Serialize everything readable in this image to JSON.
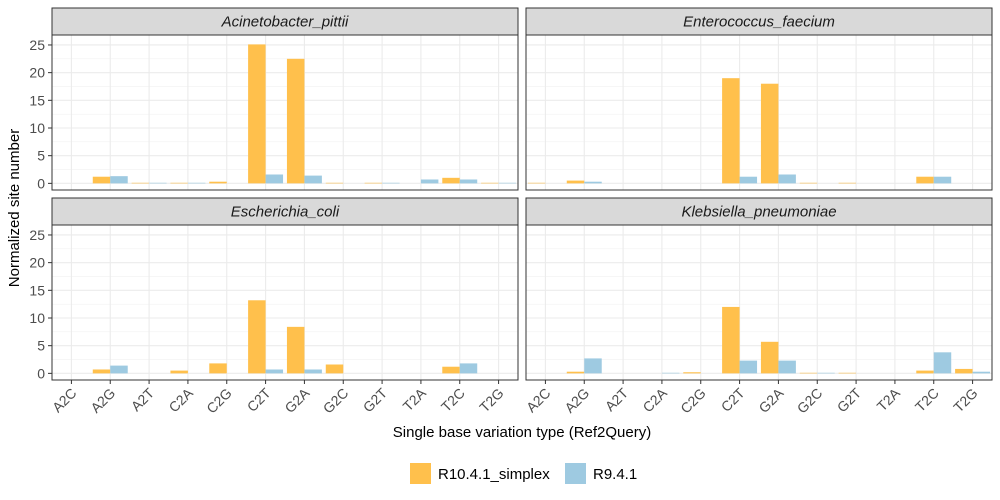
{
  "chart_data": {
    "type": "bar",
    "xlabel": "Single base variation type (Ref2Query)",
    "ylabel": "Normalized site number",
    "ylim": [
      -1.2,
      26.8
    ],
    "yticks": [
      0,
      5,
      10,
      15,
      20,
      25
    ],
    "categories": [
      "A2C",
      "A2G",
      "A2T",
      "C2A",
      "C2G",
      "C2T",
      "G2A",
      "G2C",
      "G2T",
      "T2A",
      "T2C",
      "T2G"
    ],
    "grid": true,
    "legend_position": "bottom",
    "legend": [
      {
        "name": "R10.4.1_simplex",
        "color": "#FFC04C"
      },
      {
        "name": "R9.4.1",
        "color": "#9ECAE1"
      }
    ],
    "panels": [
      {
        "title": "Acinetobacter_pittii",
        "series": [
          {
            "name": "R10.4.1_simplex",
            "values": [
              0,
              1.2,
              0.1,
              0.1,
              0.3,
              25.1,
              22.5,
              0.1,
              0.1,
              0,
              1.0,
              0.1
            ]
          },
          {
            "name": "R9.4.1",
            "values": [
              0,
              1.3,
              0.1,
              0.1,
              0,
              1.6,
              1.4,
              0,
              0.1,
              0.7,
              0.7,
              0.1
            ]
          }
        ]
      },
      {
        "title": "Enterococcus_faecium",
        "series": [
          {
            "name": "R10.4.1_simplex",
            "values": [
              0.1,
              0.5,
              0,
              0,
              0,
              19.0,
              18.0,
              0.1,
              0.1,
              0,
              1.2,
              0
            ]
          },
          {
            "name": "R9.4.1",
            "values": [
              0,
              0.3,
              0,
              0,
              0,
              1.2,
              1.6,
              0,
              0,
              0,
              1.2,
              0
            ]
          }
        ]
      },
      {
        "title": "Escherichia_coli",
        "series": [
          {
            "name": "R10.4.1_simplex",
            "values": [
              0,
              0.7,
              0,
              0.5,
              1.8,
              13.2,
              8.4,
              1.6,
              0,
              0,
              1.2,
              0
            ]
          },
          {
            "name": "R9.4.1",
            "values": [
              0,
              1.4,
              0,
              0,
              0,
              0.7,
              0.7,
              0,
              0,
              0,
              1.8,
              0
            ]
          }
        ]
      },
      {
        "title": "Klebsiella_pneumoniae",
        "series": [
          {
            "name": "R10.4.1_simplex",
            "values": [
              0,
              0.3,
              0,
              0,
              0.2,
              12.0,
              5.7,
              0.1,
              0.1,
              0,
              0.5,
              0.8
            ]
          },
          {
            "name": "R9.4.1",
            "values": [
              0,
              2.7,
              0,
              0.1,
              0,
              2.3,
              2.3,
              0.1,
              0,
              0,
              3.8,
              0.3
            ]
          }
        ]
      }
    ]
  }
}
